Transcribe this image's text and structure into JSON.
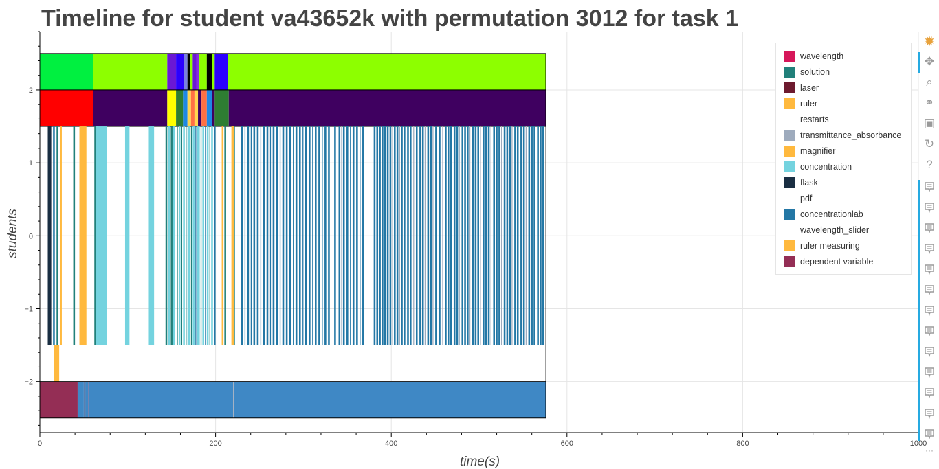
{
  "chart_data": {
    "type": "timeline",
    "title": "Timeline for student va43652k with permutation 3012 for task 1",
    "xlabel": "time(s)",
    "ylabel": "students",
    "xlim": [
      0,
      1000
    ],
    "ylim": [
      -2.7,
      2.8
    ],
    "x_ticks": [
      0,
      200,
      400,
      600,
      800,
      1000
    ],
    "x_tick_labels": [
      "0",
      "200",
      "400",
      "600",
      "800",
      "1000"
    ],
    "y_ticks": [
      2,
      1,
      0,
      -1,
      -2
    ],
    "y_tick_labels": [
      "2",
      "1",
      "0",
      "−1",
      "−2"
    ],
    "grid": true,
    "legend_position": "top-right",
    "legend": [
      {
        "label": "wavelength",
        "color": "#d6175a"
      },
      {
        "label": "solution",
        "color": "#21807a"
      },
      {
        "label": "laser",
        "color": "#6d1a2e"
      },
      {
        "label": "ruler",
        "color": "#ffb93e"
      },
      {
        "label": "restarts",
        "color": ""
      },
      {
        "label": "transmittance_absorbance",
        "color": "#9eabbd"
      },
      {
        "label": "magnifier",
        "color": "#ffb93e"
      },
      {
        "label": "concentration",
        "color": "#74d3df"
      },
      {
        "label": "flask",
        "color": "#1a2e42"
      },
      {
        "label": "pdf",
        "color": ""
      },
      {
        "label": "concentrationlab",
        "color": "#2377a5"
      },
      {
        "label": "wavelength_slider",
        "color": ""
      },
      {
        "label": "ruler measuring",
        "color": "#ffb93e"
      },
      {
        "label": "dependent variable",
        "color": "#942e55"
      }
    ],
    "top_row": {
      "y_range": [
        2.0,
        2.5
      ],
      "segments": [
        {
          "start": 0,
          "end": 61,
          "color": "#00f040"
        },
        {
          "start": 61,
          "end": 145,
          "color": "#8dff00"
        },
        {
          "start": 145,
          "end": 155,
          "color": "#6a18d4"
        },
        {
          "start": 155,
          "end": 164,
          "color": "#2b00ff"
        },
        {
          "start": 164,
          "end": 168,
          "color": "#7a7fe0"
        },
        {
          "start": 168,
          "end": 171,
          "color": "#000000"
        },
        {
          "start": 171,
          "end": 174,
          "color": "#8dff00"
        },
        {
          "start": 174,
          "end": 178,
          "color": "#6a18d4"
        },
        {
          "start": 178,
          "end": 181,
          "color": "#8a2be2"
        },
        {
          "start": 181,
          "end": 190,
          "color": "#8dff00"
        },
        {
          "start": 190,
          "end": 196,
          "color": "#000000"
        },
        {
          "start": 196,
          "end": 199,
          "color": "#8dff00"
        },
        {
          "start": 199,
          "end": 214,
          "color": "#2b00ff"
        },
        {
          "start": 214,
          "end": 576,
          "color": "#8dff00"
        }
      ]
    },
    "second_row": {
      "y_range": [
        1.5,
        2.0
      ],
      "segments": [
        {
          "start": 0,
          "end": 61,
          "color": "#ff0000"
        },
        {
          "start": 61,
          "end": 145,
          "color": "#3f0060"
        },
        {
          "start": 145,
          "end": 155,
          "color": "#ffff00"
        },
        {
          "start": 155,
          "end": 163,
          "color": "#2e7d32"
        },
        {
          "start": 163,
          "end": 168,
          "color": "#1e88e5"
        },
        {
          "start": 168,
          "end": 172,
          "color": "#ffd54f"
        },
        {
          "start": 172,
          "end": 176,
          "color": "#ff7043"
        },
        {
          "start": 176,
          "end": 180,
          "color": "#ffd54f"
        },
        {
          "start": 180,
          "end": 184,
          "color": "#3f0060"
        },
        {
          "start": 184,
          "end": 190,
          "color": "#ff7043"
        },
        {
          "start": 190,
          "end": 196,
          "color": "#1e88e5"
        },
        {
          "start": 196,
          "end": 199,
          "color": "#3f0060"
        },
        {
          "start": 199,
          "end": 215,
          "color": "#2e7d32"
        },
        {
          "start": 215,
          "end": 576,
          "color": "#3f0060"
        }
      ]
    },
    "event_band": {
      "y_range": [
        -1.5,
        1.5
      ],
      "events": [
        {
          "start": 9,
          "end": 13,
          "color": "#1a2e42"
        },
        {
          "start": 15,
          "end": 17,
          "color": "#2377a5"
        },
        {
          "start": 19,
          "end": 21,
          "color": "#21807a"
        },
        {
          "start": 23,
          "end": 25,
          "color": "#ffb93e"
        },
        {
          "start": 38,
          "end": 40,
          "color": "#21807a"
        },
        {
          "start": 45,
          "end": 53,
          "color": "#ffb93e"
        },
        {
          "start": 62,
          "end": 64,
          "color": "#21807a"
        },
        {
          "start": 64,
          "end": 66,
          "color": "#9eabbd"
        },
        {
          "start": 64,
          "end": 76,
          "color": "#74d3df"
        },
        {
          "start": 97,
          "end": 102,
          "color": "#74d3df"
        },
        {
          "start": 124,
          "end": 130,
          "color": "#74d3df"
        },
        {
          "start": 143,
          "end": 145,
          "color": "#21807a"
        },
        {
          "start": 146,
          "end": 148,
          "color": "#74d3df"
        },
        {
          "start": 149,
          "end": 151,
          "color": "#21807a"
        },
        {
          "start": 151,
          "end": 154,
          "color": "#74d3df"
        },
        {
          "start": 156,
          "end": 157,
          "color": "#21807a"
        },
        {
          "start": 158,
          "end": 160,
          "color": "#74d3df"
        },
        {
          "start": 161,
          "end": 162,
          "color": "#21807a"
        },
        {
          "start": 163,
          "end": 165,
          "color": "#74d3df"
        },
        {
          "start": 166,
          "end": 167,
          "color": "#21807a"
        },
        {
          "start": 168,
          "end": 171,
          "color": "#74d3df"
        },
        {
          "start": 172,
          "end": 173,
          "color": "#21807a"
        },
        {
          "start": 174,
          "end": 176,
          "color": "#74d3df"
        },
        {
          "start": 177,
          "end": 178,
          "color": "#2377a5"
        },
        {
          "start": 179,
          "end": 182,
          "color": "#74d3df"
        },
        {
          "start": 183,
          "end": 184,
          "color": "#21807a"
        },
        {
          "start": 185,
          "end": 187,
          "color": "#74d3df"
        },
        {
          "start": 188,
          "end": 189,
          "color": "#2377a5"
        },
        {
          "start": 190,
          "end": 192,
          "color": "#74d3df"
        },
        {
          "start": 193,
          "end": 194,
          "color": "#21807a"
        },
        {
          "start": 195,
          "end": 197,
          "color": "#74d3df"
        },
        {
          "start": 198,
          "end": 200,
          "color": "#2377a5"
        },
        {
          "start": 207,
          "end": 209,
          "color": "#ffb93e"
        },
        {
          "start": 210,
          "end": 212,
          "color": "#21807a"
        },
        {
          "start": 218,
          "end": 221,
          "color": "#ffb93e"
        },
        {
          "start": 221,
          "end": 222,
          "color": "#21807a"
        },
        {
          "start": 229,
          "end": 231,
          "color": "#2377a5"
        },
        {
          "start": 233,
          "end": 234,
          "color": "#2377a5"
        },
        {
          "start": 236,
          "end": 238,
          "color": "#2377a5"
        },
        {
          "start": 240,
          "end": 241,
          "color": "#2377a5"
        },
        {
          "start": 243,
          "end": 245,
          "color": "#2377a5"
        },
        {
          "start": 247,
          "end": 249,
          "color": "#2377a5"
        },
        {
          "start": 251,
          "end": 252,
          "color": "#2377a5"
        },
        {
          "start": 254,
          "end": 256,
          "color": "#2377a5"
        },
        {
          "start": 258,
          "end": 260,
          "color": "#2377a5"
        },
        {
          "start": 262,
          "end": 263,
          "color": "#2377a5"
        },
        {
          "start": 265,
          "end": 267,
          "color": "#2377a5"
        },
        {
          "start": 269,
          "end": 271,
          "color": "#2377a5"
        },
        {
          "start": 273,
          "end": 274,
          "color": "#2377a5"
        },
        {
          "start": 276,
          "end": 278,
          "color": "#2377a5"
        },
        {
          "start": 280,
          "end": 282,
          "color": "#2377a5"
        },
        {
          "start": 284,
          "end": 286,
          "color": "#2377a5"
        },
        {
          "start": 288,
          "end": 289,
          "color": "#2377a5"
        },
        {
          "start": 291,
          "end": 293,
          "color": "#2377a5"
        },
        {
          "start": 295,
          "end": 297,
          "color": "#2377a5"
        },
        {
          "start": 299,
          "end": 300,
          "color": "#2377a5"
        },
        {
          "start": 302,
          "end": 304,
          "color": "#2377a5"
        },
        {
          "start": 306,
          "end": 308,
          "color": "#2377a5"
        },
        {
          "start": 310,
          "end": 311,
          "color": "#2377a5"
        },
        {
          "start": 313,
          "end": 315,
          "color": "#2377a5"
        },
        {
          "start": 317,
          "end": 319,
          "color": "#2377a5"
        },
        {
          "start": 321,
          "end": 322,
          "color": "#2377a5"
        },
        {
          "start": 324,
          "end": 326,
          "color": "#2377a5"
        },
        {
          "start": 328,
          "end": 330,
          "color": "#2377a5"
        },
        {
          "start": 335,
          "end": 337,
          "color": "#2377a5"
        },
        {
          "start": 340,
          "end": 342,
          "color": "#2377a5"
        },
        {
          "start": 343,
          "end": 344,
          "color": "#9eabbd"
        },
        {
          "start": 345,
          "end": 347,
          "color": "#2377a5"
        },
        {
          "start": 349,
          "end": 351,
          "color": "#2377a5"
        },
        {
          "start": 353,
          "end": 354,
          "color": "#2377a5"
        },
        {
          "start": 356,
          "end": 358,
          "color": "#2377a5"
        },
        {
          "start": 360,
          "end": 362,
          "color": "#2377a5"
        },
        {
          "start": 364,
          "end": 365,
          "color": "#2377a5"
        },
        {
          "start": 367,
          "end": 369,
          "color": "#2377a5"
        },
        {
          "start": 380,
          "end": 382,
          "color": "#2377a5"
        },
        {
          "start": 383,
          "end": 385,
          "color": "#2377a5"
        },
        {
          "start": 386,
          "end": 388,
          "color": "#2377a5"
        },
        {
          "start": 389,
          "end": 391,
          "color": "#2377a5"
        },
        {
          "start": 392,
          "end": 394,
          "color": "#2377a5"
        },
        {
          "start": 395,
          "end": 397,
          "color": "#2377a5"
        },
        {
          "start": 398,
          "end": 400,
          "color": "#2377a5"
        },
        {
          "start": 401,
          "end": 402,
          "color": "#9eabbd"
        },
        {
          "start": 403,
          "end": 405,
          "color": "#2377a5"
        },
        {
          "start": 406,
          "end": 408,
          "color": "#2377a5"
        },
        {
          "start": 409,
          "end": 410,
          "color": "#9eabbd"
        },
        {
          "start": 411,
          "end": 413,
          "color": "#2377a5"
        },
        {
          "start": 414,
          "end": 416,
          "color": "#2377a5"
        },
        {
          "start": 418,
          "end": 420,
          "color": "#2377a5"
        },
        {
          "start": 421,
          "end": 423,
          "color": "#2377a5"
        },
        {
          "start": 425,
          "end": 426,
          "color": "#9eabbd"
        },
        {
          "start": 428,
          "end": 430,
          "color": "#2377a5"
        },
        {
          "start": 432,
          "end": 434,
          "color": "#2377a5"
        },
        {
          "start": 435,
          "end": 437,
          "color": "#2377a5"
        },
        {
          "start": 438,
          "end": 439,
          "color": "#9eabbd"
        },
        {
          "start": 441,
          "end": 443,
          "color": "#2377a5"
        },
        {
          "start": 444,
          "end": 446,
          "color": "#2377a5"
        },
        {
          "start": 447,
          "end": 448,
          "color": "#9eabbd"
        },
        {
          "start": 450,
          "end": 452,
          "color": "#2377a5"
        },
        {
          "start": 454,
          "end": 456,
          "color": "#2377a5"
        },
        {
          "start": 458,
          "end": 459,
          "color": "#9eabbd"
        },
        {
          "start": 461,
          "end": 463,
          "color": "#2377a5"
        },
        {
          "start": 464,
          "end": 466,
          "color": "#2377a5"
        },
        {
          "start": 467,
          "end": 469,
          "color": "#2377a5"
        },
        {
          "start": 471,
          "end": 473,
          "color": "#2377a5"
        },
        {
          "start": 474,
          "end": 476,
          "color": "#2377a5"
        },
        {
          "start": 477,
          "end": 478,
          "color": "#9eabbd"
        },
        {
          "start": 480,
          "end": 482,
          "color": "#2377a5"
        },
        {
          "start": 483,
          "end": 485,
          "color": "#2377a5"
        },
        {
          "start": 486,
          "end": 488,
          "color": "#2377a5"
        },
        {
          "start": 489,
          "end": 490,
          "color": "#9eabbd"
        },
        {
          "start": 492,
          "end": 494,
          "color": "#2377a5"
        },
        {
          "start": 495,
          "end": 497,
          "color": "#2377a5"
        },
        {
          "start": 498,
          "end": 500,
          "color": "#2377a5"
        },
        {
          "start": 501,
          "end": 502,
          "color": "#9eabbd"
        },
        {
          "start": 504,
          "end": 506,
          "color": "#2377a5"
        },
        {
          "start": 507,
          "end": 509,
          "color": "#2377a5"
        },
        {
          "start": 510,
          "end": 512,
          "color": "#2377a5"
        },
        {
          "start": 513,
          "end": 514,
          "color": "#9eabbd"
        },
        {
          "start": 516,
          "end": 518,
          "color": "#2377a5"
        },
        {
          "start": 519,
          "end": 521,
          "color": "#2377a5"
        },
        {
          "start": 522,
          "end": 524,
          "color": "#2377a5"
        },
        {
          "start": 525,
          "end": 526,
          "color": "#9eabbd"
        },
        {
          "start": 528,
          "end": 530,
          "color": "#2377a5"
        },
        {
          "start": 531,
          "end": 533,
          "color": "#2377a5"
        },
        {
          "start": 534,
          "end": 536,
          "color": "#2377a5"
        },
        {
          "start": 537,
          "end": 538,
          "color": "#9eabbd"
        },
        {
          "start": 540,
          "end": 542,
          "color": "#2377a5"
        },
        {
          "start": 543,
          "end": 545,
          "color": "#2377a5"
        },
        {
          "start": 547,
          "end": 549,
          "color": "#2377a5"
        },
        {
          "start": 550,
          "end": 552,
          "color": "#2377a5"
        },
        {
          "start": 553,
          "end": 554,
          "color": "#9eabbd"
        },
        {
          "start": 556,
          "end": 558,
          "color": "#2377a5"
        },
        {
          "start": 559,
          "end": 561,
          "color": "#2377a5"
        },
        {
          "start": 562,
          "end": 564,
          "color": "#2377a5"
        },
        {
          "start": 566,
          "end": 568,
          "color": "#2377a5"
        },
        {
          "start": 569,
          "end": 571,
          "color": "#2377a5"
        },
        {
          "start": 572,
          "end": 574,
          "color": "#2377a5"
        }
      ]
    },
    "ruler_measuring_row": {
      "y_range": [
        -2.0,
        -1.5
      ],
      "segments": [
        {
          "start": 16,
          "end": 22,
          "color": "#ffb93e"
        }
      ]
    },
    "bottom_row": {
      "y_range": [
        -2.5,
        -2.0
      ],
      "segments": [
        {
          "start": 0,
          "end": 43,
          "color": "#942e55"
        },
        {
          "start": 43,
          "end": 50,
          "color": "#3f88c5"
        },
        {
          "start": 50,
          "end": 52,
          "color": "#5a7fb0"
        },
        {
          "start": 52,
          "end": 55,
          "color": "#3f88c5"
        },
        {
          "start": 55,
          "end": 56,
          "color": "#6a6fa0"
        },
        {
          "start": 56,
          "end": 220,
          "color": "#3f88c5"
        },
        {
          "start": 220,
          "end": 221,
          "color": "#9eabbd"
        },
        {
          "start": 221,
          "end": 576,
          "color": "#3f88c5"
        }
      ]
    }
  },
  "toolbar": {
    "tools": [
      {
        "name": "bokeh-logo-icon",
        "glyph": "✹",
        "color": "#e8a23c"
      },
      {
        "name": "pan-icon",
        "glyph": "✥",
        "color": "#9a9a9a"
      },
      {
        "name": "box-zoom-icon",
        "glyph": "⌕",
        "color": "#9a9a9a"
      },
      {
        "name": "wheel-zoom-icon",
        "glyph": "⚭",
        "color": "#9a9a9a"
      },
      {
        "name": "save-icon",
        "glyph": "▣",
        "color": "#9a9a9a"
      },
      {
        "name": "reset-icon",
        "glyph": "↻",
        "color": "#9a9a9a"
      },
      {
        "name": "help-icon",
        "glyph": "?",
        "color": "#9a9a9a"
      }
    ],
    "hover_tool_count": 13,
    "more_label": "···"
  }
}
